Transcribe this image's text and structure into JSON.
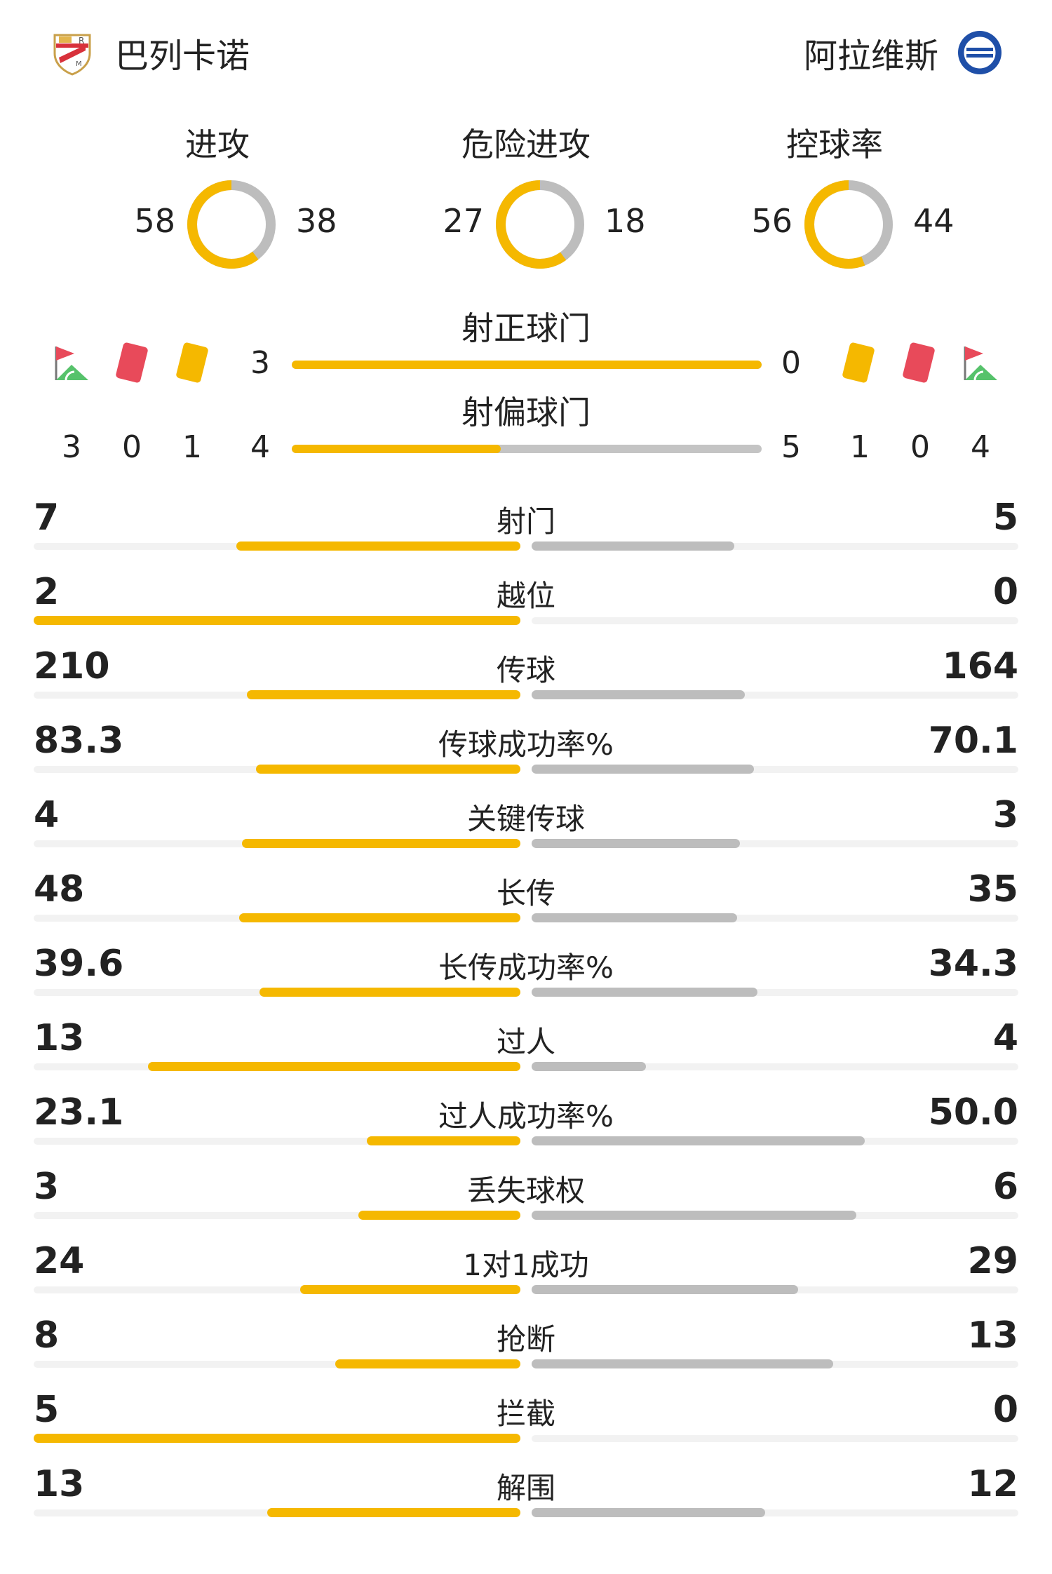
{
  "header": {
    "home_team": "巴列卡诺",
    "away_team": "阿拉维斯",
    "home_badge_icon": "rayo-vallecano-badge-icon",
    "away_badge_icon": "alaves-badge-icon"
  },
  "colors": {
    "home": "#f5b800",
    "away": "#bdbdbd",
    "red_card": "#e84a5a",
    "yellow_card": "#f5b800",
    "corner_flag": "#e84a5a",
    "corner_pitch": "#56c26b"
  },
  "donuts": [
    {
      "title": "进攻",
      "home": "58",
      "away": "38",
      "home_value": 58,
      "away_value": 38
    },
    {
      "title": "危险进攻",
      "home": "27",
      "away": "18",
      "home_value": 27,
      "away_value": 18
    },
    {
      "title": "控球率",
      "home": "56",
      "away": "44",
      "home_value": 56,
      "away_value": 44
    }
  ],
  "shots_on_target": {
    "title": "射正球门",
    "home": "3",
    "away": "0",
    "home_value": 3,
    "away_value": 0
  },
  "shots_off_target": {
    "title": "射偏球门",
    "home": "4",
    "away": "5",
    "home_value": 4,
    "away_value": 5
  },
  "discipline": {
    "home": {
      "corners": "3",
      "red_cards": "0",
      "yellow_cards": "1"
    },
    "away": {
      "yellow_cards": "1",
      "red_cards": "0",
      "corners": "4"
    }
  },
  "stats": [
    {
      "label": "射门",
      "home": "7",
      "away": "5",
      "home_value": 7,
      "away_value": 5
    },
    {
      "label": "越位",
      "home": "2",
      "away": "0",
      "home_value": 2,
      "away_value": 0
    },
    {
      "label": "传球",
      "home": "210",
      "away": "164",
      "home_value": 210,
      "away_value": 164
    },
    {
      "label": "传球成功率%",
      "home": "83.3",
      "away": "70.1",
      "home_value": 83.3,
      "away_value": 70.1
    },
    {
      "label": "关键传球",
      "home": "4",
      "away": "3",
      "home_value": 4,
      "away_value": 3
    },
    {
      "label": "长传",
      "home": "48",
      "away": "35",
      "home_value": 48,
      "away_value": 35
    },
    {
      "label": "长传成功率%",
      "home": "39.6",
      "away": "34.3",
      "home_value": 39.6,
      "away_value": 34.3
    },
    {
      "label": "过人",
      "home": "13",
      "away": "4",
      "home_value": 13,
      "away_value": 4
    },
    {
      "label": "过人成功率%",
      "home": "23.1",
      "away": "50.0",
      "home_value": 23.1,
      "away_value": 50.0
    },
    {
      "label": "丢失球权",
      "home": "3",
      "away": "6",
      "home_value": 3,
      "away_value": 6
    },
    {
      "label": "1对1成功",
      "home": "24",
      "away": "29",
      "home_value": 24,
      "away_value": 29
    },
    {
      "label": "抢断",
      "home": "8",
      "away": "13",
      "home_value": 8,
      "away_value": 13
    },
    {
      "label": "拦截",
      "home": "5",
      "away": "0",
      "home_value": 5,
      "away_value": 0
    },
    {
      "label": "解围",
      "home": "13",
      "away": "12",
      "home_value": 13,
      "away_value": 12
    }
  ]
}
